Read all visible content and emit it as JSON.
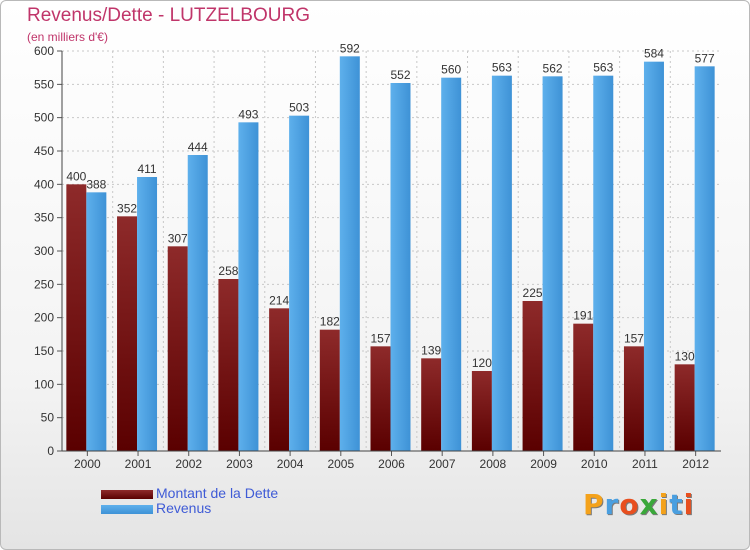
{
  "chart_data": {
    "type": "bar",
    "title": "Revenus/Dette - LUTZELBOURG",
    "subtitle": "(en milliers d'€)",
    "categories": [
      "2000",
      "2001",
      "2002",
      "2003",
      "2004",
      "2005",
      "2006",
      "2007",
      "2008",
      "2009",
      "2010",
      "2011",
      "2012"
    ],
    "series": [
      {
        "name": "Montant de la Dette",
        "color": "#7a1414",
        "values": [
          400,
          352,
          307,
          258,
          214,
          182,
          157,
          139,
          120,
          225,
          191,
          157,
          130
        ]
      },
      {
        "name": "Revenus",
        "color": "#4aa0e0",
        "values": [
          388,
          411,
          444,
          493,
          503,
          592,
          552,
          560,
          563,
          562,
          563,
          584,
          577
        ]
      }
    ],
    "ylim": [
      0,
      600
    ],
    "yticks": [
      0,
      50,
      100,
      150,
      200,
      250,
      300,
      350,
      400,
      450,
      500,
      550,
      600
    ],
    "grid": true,
    "legend": "bottom-left"
  },
  "logo": {
    "letters": [
      "P",
      "r",
      "o",
      "x",
      "i",
      "t",
      "i"
    ],
    "colors": [
      "#f4a21b",
      "#4a9fe0",
      "#e84f1f",
      "#3aa83a",
      "#f4a21b",
      "#4a9fe0",
      "#e84f1f"
    ]
  }
}
